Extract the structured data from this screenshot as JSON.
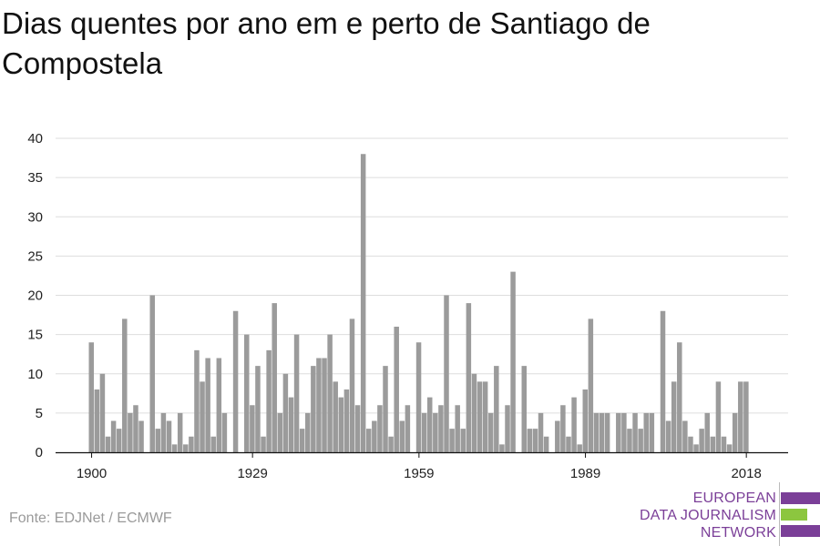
{
  "title": "Dias quentes por ano em e perto de Santiago de Compostela",
  "source": "Fonte: EDJNet / ECMWF",
  "logo": {
    "line1": "EUROPEAN",
    "line2": "DATA JOURNALISM",
    "line3": "NETWORK",
    "colors": {
      "purple": "#7b3f98",
      "green": "#8cc63f"
    }
  },
  "chart_data": {
    "type": "bar",
    "title": "Dias quentes por ano em e perto de Santiago de Compostela",
    "xlabel": "",
    "ylabel": "",
    "x_start": 1900,
    "x_end": 2018,
    "x_ticks": [
      1900,
      1929,
      1959,
      1989,
      2018
    ],
    "y_ticks": [
      0,
      5,
      10,
      15,
      20,
      25,
      30,
      35,
      40
    ],
    "ylim": [
      0,
      40
    ],
    "grid": true,
    "bar_color": "#9b9b9b",
    "values": [
      14,
      8,
      10,
      2,
      4,
      3,
      17,
      5,
      6,
      4,
      0,
      20,
      3,
      5,
      4,
      1,
      5,
      1,
      2,
      13,
      9,
      12,
      2,
      12,
      5,
      0,
      18,
      0,
      15,
      6,
      11,
      2,
      13,
      19,
      5,
      10,
      7,
      15,
      3,
      5,
      11,
      12,
      12,
      15,
      9,
      7,
      8,
      17,
      6,
      38,
      3,
      4,
      6,
      11,
      2,
      16,
      4,
      6,
      0,
      14,
      5,
      7,
      5,
      6,
      20,
      3,
      6,
      3,
      19,
      10,
      9,
      9,
      5,
      11,
      1,
      6,
      23,
      0,
      11,
      3,
      3,
      5,
      2,
      0,
      4,
      6,
      2,
      7,
      1,
      8,
      17,
      5,
      5,
      5,
      0,
      5,
      5,
      3,
      5,
      3,
      5,
      5,
      0,
      18,
      4,
      9,
      14,
      4,
      2,
      1,
      3,
      5,
      2,
      9,
      2,
      1,
      5,
      9,
      9
    ]
  }
}
